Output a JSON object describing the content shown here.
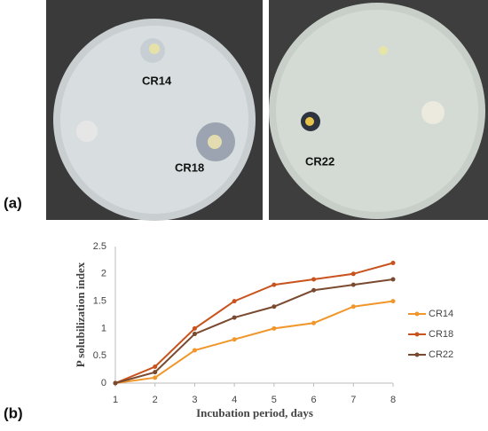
{
  "panel_labels": [
    "(a)",
    "(b)"
  ],
  "photo_labels": [
    "CR14",
    "CR18",
    "CR22"
  ],
  "chart_data": {
    "type": "line",
    "x_label": "Incubation period, days",
    "y_label": "P solubilization index",
    "x": [
      1,
      2,
      3,
      4,
      5,
      6,
      7,
      8
    ],
    "series": [
      {
        "name": "CR14",
        "color": "#f0962a",
        "values": [
          0,
          0.1,
          0.6,
          0.8,
          1.0,
          1.1,
          1.4,
          1.5
        ]
      },
      {
        "name": "CR18",
        "color": "#c8531c",
        "values": [
          0,
          0.3,
          1.0,
          1.5,
          1.8,
          1.9,
          2.0,
          2.2
        ]
      },
      {
        "name": "CR22",
        "color": "#7a4a30",
        "values": [
          0,
          0.2,
          0.9,
          1.2,
          1.4,
          1.7,
          1.8,
          1.9
        ]
      }
    ],
    "xlim": [
      1,
      8
    ],
    "xticks": [
      1,
      2,
      3,
      4,
      5,
      6,
      7,
      8
    ],
    "ylim": [
      0,
      2.5
    ],
    "yticks": [
      0,
      0.5,
      1,
      1.5,
      2,
      2.5
    ],
    "grid": false,
    "legend": "right"
  }
}
